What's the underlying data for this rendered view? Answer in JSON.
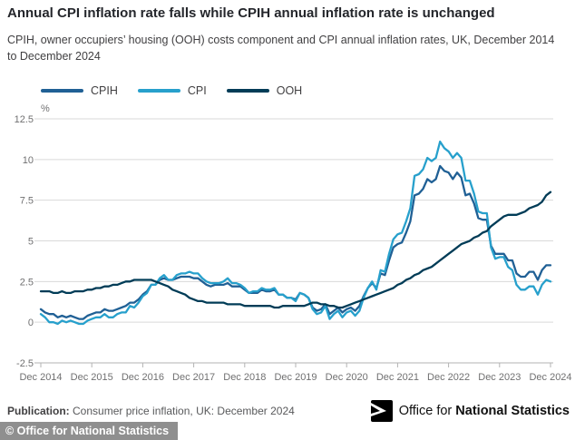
{
  "header": {
    "title": "Annual CPI inflation rate falls while CPIH annual inflation rate is unchanged",
    "subtitle_line1": "CPIH, owner occupiers’ housing (OOH) costs component and CPI annual inflation rates, UK, December 2014",
    "subtitle_line2": "to December 2024"
  },
  "colors": {
    "cpih": "#206095",
    "cpi": "#27A0CC",
    "ooh": "#003C57",
    "gridline": "#d9d9d9",
    "axis": "#b3b3b3",
    "tick_text": "#707071"
  },
  "chart_data": {
    "type": "line",
    "unit_label": "%",
    "frequency": "monthly",
    "x_start": "Dec 2014",
    "x_end": "Dec 2024",
    "x_tick_labels": [
      "Dec 2014",
      "Dec 2015",
      "Dec 2016",
      "Dec 2017",
      "Dec 2018",
      "Dec 2019",
      "Dec 2020",
      "Dec 2021",
      "Dec 2022",
      "Dec 2023",
      "Dec 2024"
    ],
    "y_ticks": [
      12.5,
      10,
      7.5,
      5,
      2.5,
      0,
      -2.5
    ],
    "ylim": [
      -2.5,
      12.5
    ],
    "grid": true,
    "legend_position": "top",
    "series": [
      {
        "name": "CPIH",
        "color": "#206095",
        "values": [
          0.8,
          0.6,
          0.5,
          0.5,
          0.3,
          0.4,
          0.3,
          0.4,
          0.3,
          0.2,
          0.2,
          0.4,
          0.5,
          0.6,
          0.6,
          0.8,
          0.7,
          0.7,
          0.8,
          0.9,
          1.0,
          1.2,
          1.2,
          1.4,
          1.7,
          1.9,
          2.3,
          2.3,
          2.6,
          2.7,
          2.6,
          2.6,
          2.7,
          2.8,
          2.8,
          2.8,
          2.7,
          2.7,
          2.5,
          2.3,
          2.2,
          2.3,
          2.3,
          2.3,
          2.4,
          2.2,
          2.2,
          2.2,
          2.0,
          1.8,
          1.8,
          1.8,
          2.0,
          1.9,
          1.9,
          2.0,
          1.7,
          1.7,
          1.5,
          1.5,
          1.4,
          1.8,
          1.7,
          1.5,
          0.9,
          0.7,
          0.8,
          1.1,
          0.5,
          0.7,
          0.9,
          0.6,
          0.8,
          0.9,
          0.7,
          1.0,
          1.6,
          2.1,
          2.4,
          2.1,
          3.0,
          2.9,
          3.8,
          4.6,
          4.8,
          4.9,
          5.5,
          6.2,
          7.8,
          7.9,
          8.2,
          8.8,
          8.6,
          8.8,
          9.6,
          9.3,
          9.2,
          8.8,
          9.2,
          8.9,
          7.8,
          7.9,
          7.3,
          6.4,
          6.3,
          6.3,
          4.7,
          4.2,
          4.2,
          4.2,
          3.8,
          3.8,
          3.0,
          2.8,
          2.8,
          3.1,
          3.1,
          2.6,
          3.2,
          3.5,
          3.5
        ]
      },
      {
        "name": "CPI",
        "color": "#27A0CC",
        "values": [
          0.5,
          0.3,
          0.0,
          0.0,
          -0.1,
          0.1,
          0.0,
          0.1,
          0.0,
          -0.1,
          -0.1,
          0.1,
          0.2,
          0.3,
          0.3,
          0.5,
          0.3,
          0.3,
          0.5,
          0.6,
          0.6,
          1.0,
          0.9,
          1.2,
          1.6,
          1.8,
          2.3,
          2.3,
          2.7,
          2.9,
          2.6,
          2.6,
          2.9,
          3.0,
          3.0,
          3.1,
          3.0,
          3.0,
          2.7,
          2.5,
          2.4,
          2.4,
          2.4,
          2.5,
          2.7,
          2.4,
          2.4,
          2.3,
          2.1,
          1.8,
          1.9,
          1.9,
          2.1,
          2.0,
          2.0,
          2.1,
          1.7,
          1.7,
          1.5,
          1.5,
          1.3,
          1.8,
          1.7,
          1.5,
          0.8,
          0.5,
          0.6,
          1.0,
          0.2,
          0.5,
          0.7,
          0.3,
          0.6,
          0.7,
          0.4,
          0.7,
          1.5,
          2.1,
          2.5,
          2.0,
          3.2,
          3.1,
          4.2,
          5.1,
          5.4,
          5.5,
          6.2,
          7.0,
          9.0,
          9.1,
          9.4,
          10.1,
          9.9,
          10.1,
          11.1,
          10.7,
          10.5,
          10.1,
          10.4,
          10.1,
          8.7,
          8.7,
          7.9,
          6.8,
          6.7,
          6.7,
          4.6,
          3.9,
          4.0,
          4.0,
          3.4,
          3.2,
          2.3,
          2.0,
          2.0,
          2.2,
          2.2,
          1.7,
          2.3,
          2.6,
          2.5
        ]
      },
      {
        "name": "OOH",
        "color": "#003C57",
        "values": [
          1.9,
          1.9,
          1.9,
          1.8,
          1.8,
          1.9,
          1.8,
          1.8,
          1.9,
          1.9,
          1.9,
          2.0,
          2.0,
          2.1,
          2.1,
          2.2,
          2.2,
          2.3,
          2.3,
          2.4,
          2.5,
          2.5,
          2.6,
          2.6,
          2.6,
          2.6,
          2.6,
          2.5,
          2.4,
          2.3,
          2.2,
          2.0,
          1.9,
          1.8,
          1.7,
          1.5,
          1.4,
          1.3,
          1.3,
          1.2,
          1.2,
          1.2,
          1.2,
          1.2,
          1.1,
          1.1,
          1.1,
          1.1,
          1.0,
          1.0,
          1.0,
          1.0,
          1.0,
          1.0,
          1.0,
          0.9,
          0.9,
          1.0,
          1.0,
          1.0,
          1.0,
          1.0,
          1.0,
          1.1,
          1.2,
          1.2,
          1.1,
          1.1,
          1.0,
          1.0,
          0.9,
          0.9,
          1.0,
          1.1,
          1.2,
          1.3,
          1.4,
          1.5,
          1.6,
          1.7,
          1.8,
          1.9,
          2.0,
          2.1,
          2.3,
          2.4,
          2.6,
          2.7,
          2.9,
          3.0,
          3.2,
          3.3,
          3.4,
          3.6,
          3.8,
          4.0,
          4.2,
          4.4,
          4.6,
          4.8,
          4.9,
          5.0,
          5.2,
          5.3,
          5.5,
          5.6,
          5.9,
          6.1,
          6.3,
          6.5,
          6.6,
          6.6,
          6.6,
          6.7,
          6.8,
          7.0,
          7.1,
          7.2,
          7.4,
          7.8,
          8.0
        ]
      }
    ]
  },
  "footer": {
    "publication_label": "Publication:",
    "publication_text": " Consumer price inflation, UK: December 2024",
    "logo_text_regular": "Office for ",
    "logo_text_bold": "National Statistics",
    "copyright": "© Office for National Statistics"
  }
}
